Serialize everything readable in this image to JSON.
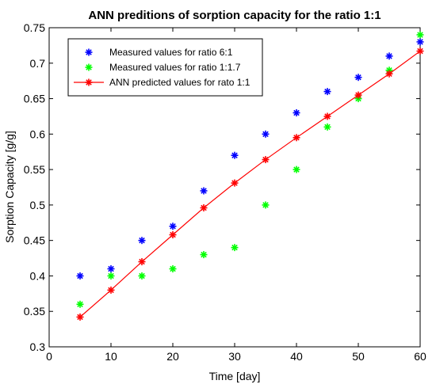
{
  "chart_data": {
    "type": "scatter",
    "title": "ANN preditions of sorption capacity for the ratio 1:1",
    "xlabel": "Time [day]",
    "ylabel": "Sorption Capacity [g/g]",
    "xlim": [
      0,
      60
    ],
    "ylim": [
      0.3,
      0.75
    ],
    "xticks": [
      0,
      10,
      20,
      30,
      40,
      50,
      60
    ],
    "yticks": [
      0.3,
      0.35,
      0.4,
      0.45,
      0.5,
      0.55,
      0.6,
      0.65,
      0.7,
      0.75
    ],
    "xtick_labels": [
      "0",
      "10",
      "20",
      "30",
      "40",
      "50",
      "60"
    ],
    "ytick_labels": [
      "0.3",
      "0.35",
      "0.4",
      "0.45",
      "0.5",
      "0.55",
      "0.6",
      "0.65",
      "0.7",
      "0.75"
    ],
    "grid": false,
    "legend_position": "top-left",
    "series": [
      {
        "name": "Measured values for ratio 6:1",
        "style": "marker",
        "color": "#0000ff",
        "x": [
          5,
          10,
          15,
          20,
          25,
          30,
          35,
          40,
          45,
          50,
          55,
          60
        ],
        "y": [
          0.4,
          0.41,
          0.45,
          0.47,
          0.52,
          0.57,
          0.6,
          0.63,
          0.66,
          0.68,
          0.71,
          0.73
        ]
      },
      {
        "name": "Measured values for ratio 1:1.7",
        "style": "marker",
        "color": "#00ff00",
        "x": [
          5,
          10,
          15,
          20,
          25,
          30,
          35,
          40,
          45,
          50,
          55,
          60
        ],
        "y": [
          0.36,
          0.4,
          0.4,
          0.41,
          0.43,
          0.44,
          0.5,
          0.55,
          0.61,
          0.65,
          0.69,
          0.74
        ]
      },
      {
        "name": "ANN predicted values for rato 1:1",
        "style": "line-marker",
        "color": "#ff0000",
        "x": [
          5,
          10,
          15,
          20,
          25,
          30,
          35,
          40,
          45,
          50,
          55,
          60
        ],
        "y": [
          0.342,
          0.38,
          0.42,
          0.458,
          0.496,
          0.531,
          0.564,
          0.595,
          0.625,
          0.655,
          0.685,
          0.717
        ]
      }
    ]
  }
}
